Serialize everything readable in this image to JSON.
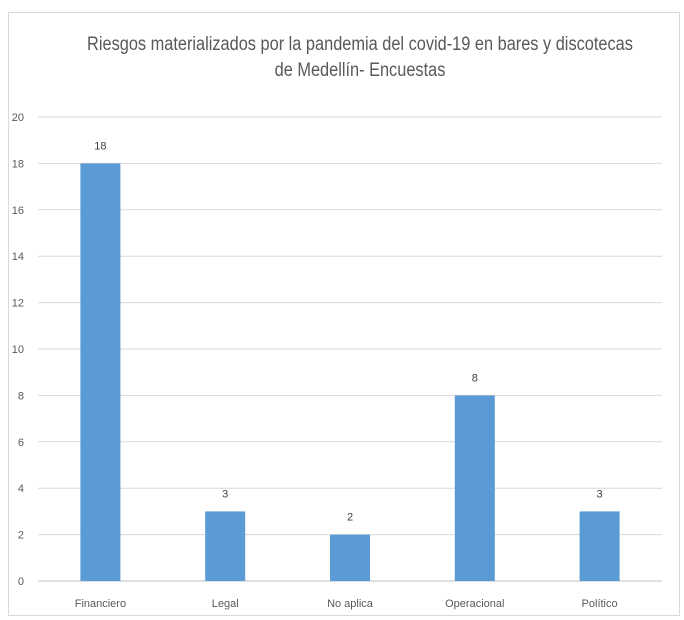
{
  "chart_data": {
    "type": "bar",
    "title": "Riesgos materializados por la pandemia del covid-19 en bares y discotecas de Medellín- Encuestas",
    "categories": [
      "Financiero",
      "Legal",
      "No aplica",
      "Operacional",
      "Político"
    ],
    "values": [
      18,
      3,
      2,
      8,
      3
    ],
    "data_labels": [
      "18",
      "3",
      "2",
      "8",
      "3"
    ],
    "ylim": [
      0,
      20
    ],
    "yticks": [
      0,
      2,
      4,
      6,
      8,
      10,
      12,
      14,
      16,
      18,
      20
    ],
    "xlabel": "",
    "ylabel": "",
    "grid": true,
    "legend": "none",
    "bar_color": "#5b9bd5"
  }
}
